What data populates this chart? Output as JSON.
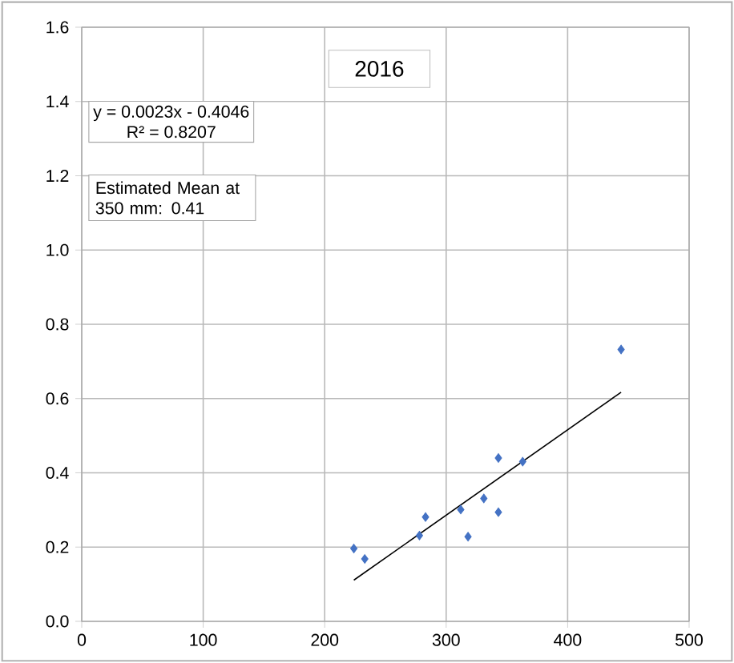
{
  "chart_data": {
    "type": "scatter",
    "title": "2016",
    "xlim": [
      0,
      500
    ],
    "xticks": [
      0,
      100,
      200,
      300,
      400,
      500
    ],
    "ylim": [
      0,
      1.6
    ],
    "yticks": [
      {
        "value": 0,
        "label": "0.0"
      },
      {
        "value": 0.2,
        "label": "0.2"
      },
      {
        "value": 0.4,
        "label": "0.4"
      },
      {
        "value": 0.6,
        "label": "0.6"
      },
      {
        "value": 0.8,
        "label": "0.8"
      },
      {
        "value": 1.0,
        "label": "1.0"
      },
      {
        "value": 1.2,
        "label": "1.2"
      },
      {
        "value": 1.4,
        "label": "1.4"
      },
      {
        "value": 1.6,
        "label": "1.6"
      }
    ],
    "grid": true,
    "series": [
      {
        "color": "#4472c4",
        "marker": "diamond",
        "x": [
          224,
          233,
          278,
          283,
          312,
          318,
          331,
          343,
          343,
          363,
          444
        ],
        "values": [
          0.196,
          0.168,
          0.231,
          0.281,
          0.301,
          0.228,
          0.331,
          0.294,
          0.44,
          0.43,
          0.732
        ]
      },
      {
        "type": "line",
        "color": "#000000",
        "marker": "none",
        "line_style": "solid",
        "x": [
          224,
          444
        ],
        "values": [
          0.111,
          0.617
        ]
      }
    ],
    "annotations": [
      "y = 0.0023x - 0.4046",
      "R² = 0.8207",
      "Estimated Mean at 350 mm: 0.41"
    ]
  }
}
